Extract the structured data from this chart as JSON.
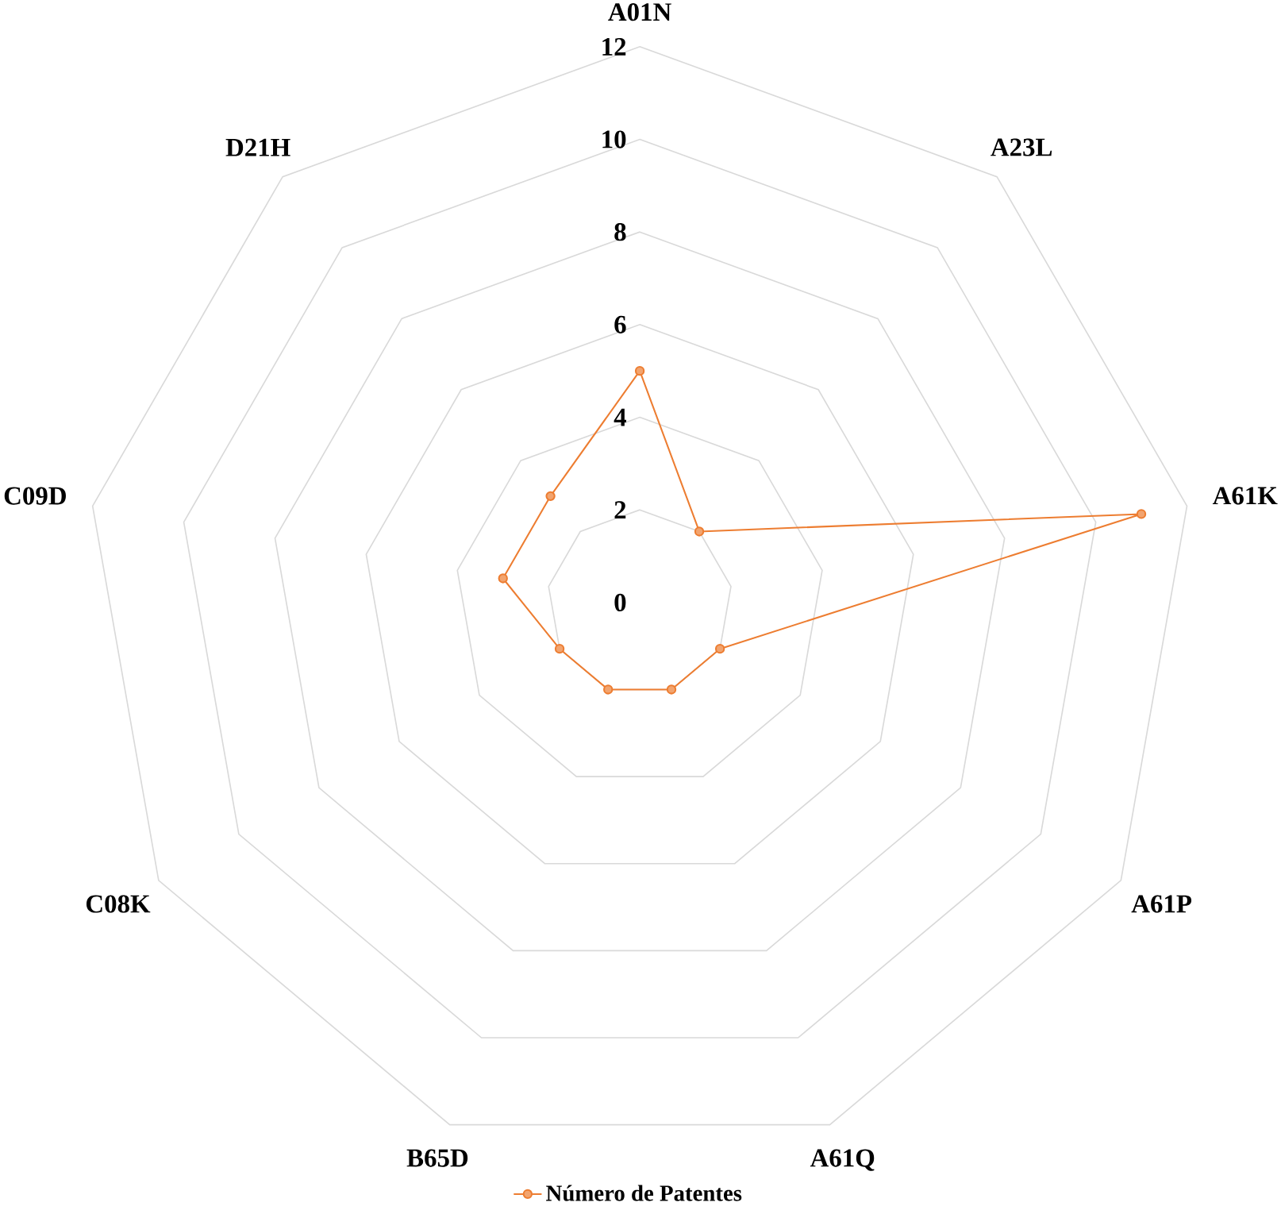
{
  "chart_data": {
    "type": "radar",
    "categories": [
      "A01N",
      "A23L",
      "A61K",
      "A61P",
      "A61Q",
      "B65D",
      "C08K",
      "C09D",
      "D21H"
    ],
    "series": [
      {
        "name": "Número de Patentes",
        "color": "#ED7D31",
        "values": [
          5,
          2,
          11,
          2,
          2,
          2,
          2,
          3,
          3
        ]
      }
    ],
    "ylim": [
      0,
      12
    ],
    "yticks": [
      0,
      2,
      4,
      6,
      8,
      10,
      12
    ],
    "grid": true,
    "legend": "bottom",
    "marker": "circle"
  }
}
